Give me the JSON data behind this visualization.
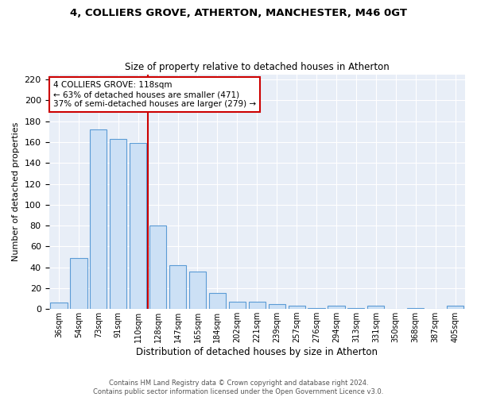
{
  "title1": "4, COLLIERS GROVE, ATHERTON, MANCHESTER, M46 0GT",
  "title2": "Size of property relative to detached houses in Atherton",
  "xlabel": "Distribution of detached houses by size in Atherton",
  "ylabel": "Number of detached properties",
  "bar_labels": [
    "36sqm",
    "54sqm",
    "73sqm",
    "91sqm",
    "110sqm",
    "128sqm",
    "147sqm",
    "165sqm",
    "184sqm",
    "202sqm",
    "221sqm",
    "239sqm",
    "257sqm",
    "276sqm",
    "294sqm",
    "313sqm",
    "331sqm",
    "350sqm",
    "368sqm",
    "387sqm",
    "405sqm"
  ],
  "bar_values": [
    6,
    49,
    172,
    163,
    159,
    80,
    42,
    36,
    15,
    7,
    7,
    5,
    3,
    1,
    3,
    1,
    3,
    0,
    1,
    0,
    3
  ],
  "bar_color": "#cce0f5",
  "bar_edge_color": "#5b9bd5",
  "annotation_text": "4 COLLIERS GROVE: 118sqm\n← 63% of detached houses are smaller (471)\n37% of semi-detached houses are larger (279) →",
  "vline_x": 4.5,
  "vline_color": "#cc0000",
  "annotation_box_color": "#ffffff",
  "annotation_box_edge": "#cc0000",
  "bg_color": "#e8eef7",
  "footer_text": "Contains HM Land Registry data © Crown copyright and database right 2024.\nContains public sector information licensed under the Open Government Licence v3.0.",
  "ylim": [
    0,
    225
  ],
  "yticks": [
    0,
    20,
    40,
    60,
    80,
    100,
    120,
    140,
    160,
    180,
    200,
    220
  ]
}
